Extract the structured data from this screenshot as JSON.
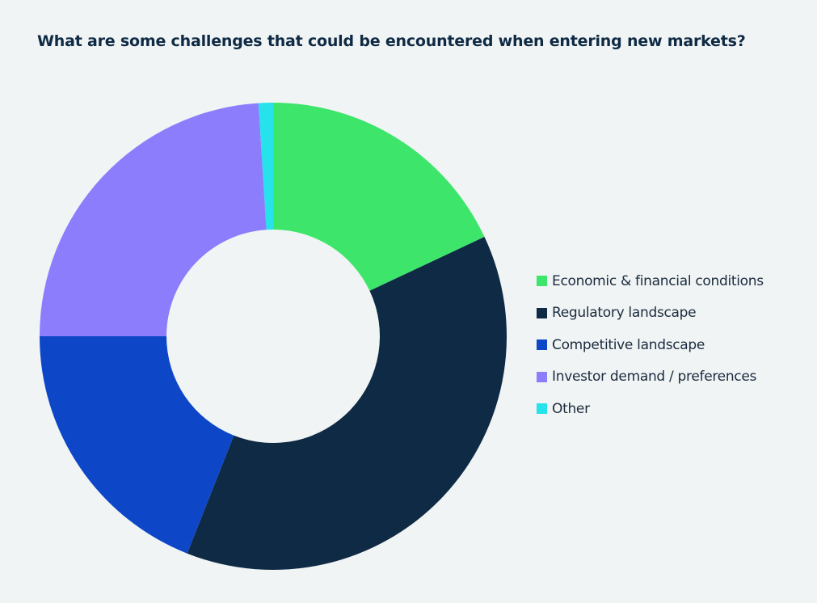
{
  "title": "What are some challenges that could be encountered when entering new markets?",
  "chart_data": {
    "type": "pie",
    "title": "What are some challenges that could be encountered when entering new markets?",
    "series": [
      {
        "name": "Economic & financial conditions",
        "value": 18,
        "color": "#3de66a"
      },
      {
        "name": "Regulatory landscape",
        "value": 38,
        "color": "#0f2a44"
      },
      {
        "name": "Competitive landscape",
        "value": 19,
        "color": "#0d47c8"
      },
      {
        "name": "Investor demand / preferences",
        "value": 24,
        "color": "#8b7dfc"
      },
      {
        "name": "Other",
        "value": 1,
        "color": "#25e2eb"
      }
    ],
    "legend_position": "right"
  }
}
